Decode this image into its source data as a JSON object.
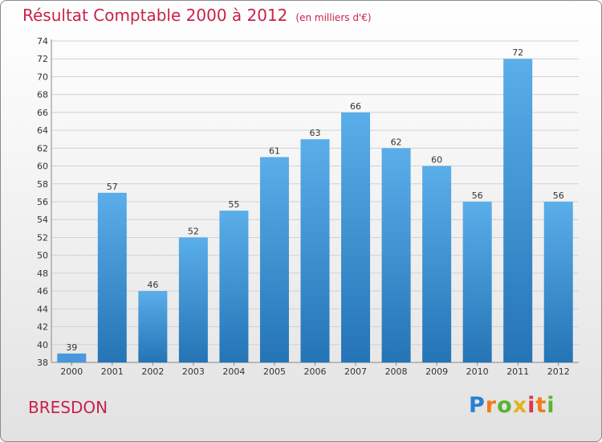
{
  "title": "Résultat Comptable 2000 à 2012",
  "subtitle": "(en milliers d'€)",
  "place": "BRESDON",
  "logo": {
    "letters": [
      "P",
      "r",
      "o",
      "x",
      "i",
      "t",
      "i"
    ]
  },
  "colors": {
    "title": "#c8224a",
    "bar_top": "#5aaee9",
    "bar_bottom": "#2474b6",
    "first_bar": "#4a98dc"
  },
  "chart_data": {
    "type": "bar",
    "title": "Résultat Comptable 2000 à 2012",
    "subtitle": "(en milliers d'€)",
    "categories": [
      "2000",
      "2001",
      "2002",
      "2003",
      "2004",
      "2005",
      "2006",
      "2007",
      "2008",
      "2009",
      "2010",
      "2011",
      "2012"
    ],
    "values": [
      39,
      57,
      46,
      52,
      55,
      61,
      63,
      66,
      62,
      60,
      56,
      72,
      56
    ],
    "ylim": [
      38,
      74
    ],
    "yticks": [
      38,
      40,
      42,
      44,
      46,
      48,
      50,
      52,
      54,
      56,
      58,
      60,
      62,
      64,
      66,
      68,
      70,
      72,
      74
    ],
    "grid": true,
    "legend": "none"
  }
}
